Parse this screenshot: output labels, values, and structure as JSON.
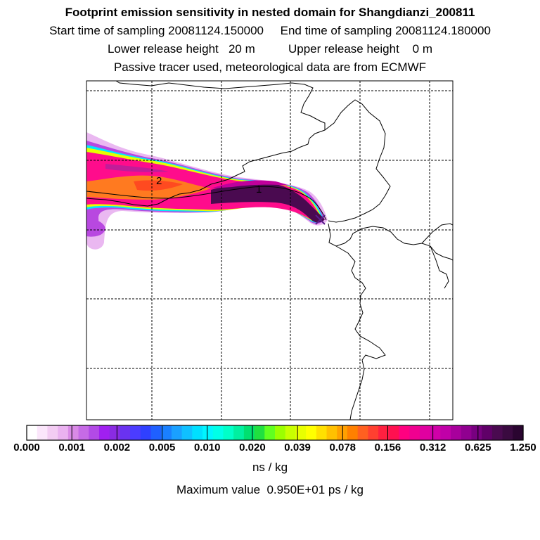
{
  "header": {
    "title": "Footprint emission sensitivity in nested domain for Shangdianzi_200811",
    "sampling_line": "Start time of sampling 20081124.150000     End time of sampling 20081124.180000",
    "release_line": "Lower release height   20 m          Upper release height    0 m",
    "tracer_line": "Passive tracer used, meteorological data are from ECMWF"
  },
  "map": {
    "markers": [
      {
        "label": "1",
        "description": "plume marker near release"
      },
      {
        "label": "2",
        "description": "plume marker upwind"
      }
    ],
    "release_site_symbol": "x-icon"
  },
  "colorbar": {
    "tick_labels": [
      "0.000",
      "0.001",
      "0.002",
      "0.005",
      "0.010",
      "0.020",
      "0.039",
      "0.078",
      "0.156",
      "0.312",
      "0.625",
      "1.250"
    ],
    "colors": [
      "#ffffff",
      "#fbe6fb",
      "#f3ccf3",
      "#eab2f0",
      "#d98ae6",
      "#c66be6",
      "#b24ae6",
      "#a020f0",
      "#8a2be2",
      "#6a32f0",
      "#4b3cff",
      "#2f40ff",
      "#1f60ff",
      "#1a80ff",
      "#1aa0ff",
      "#10c0ff",
      "#00e0ff",
      "#00f5ff",
      "#00ffe8",
      "#00ffc8",
      "#00f0a0",
      "#00e070",
      "#20e040",
      "#60ff20",
      "#9bff00",
      "#c8ff00",
      "#e8ff00",
      "#ffff00",
      "#ffe000",
      "#ffc000",
      "#ffa000",
      "#ff8000",
      "#ff6020",
      "#ff4030",
      "#ff2040",
      "#ff1050",
      "#ff0080",
      "#f00090",
      "#e000a0",
      "#d000a8",
      "#c000a8",
      "#a8009c",
      "#900090",
      "#780080",
      "#600068",
      "#4a0a50",
      "#3a0a40",
      "#2a0530"
    ],
    "unit": "ns / kg",
    "maximum_value": "Maximum value  0.950E+01 ps / kg"
  }
}
